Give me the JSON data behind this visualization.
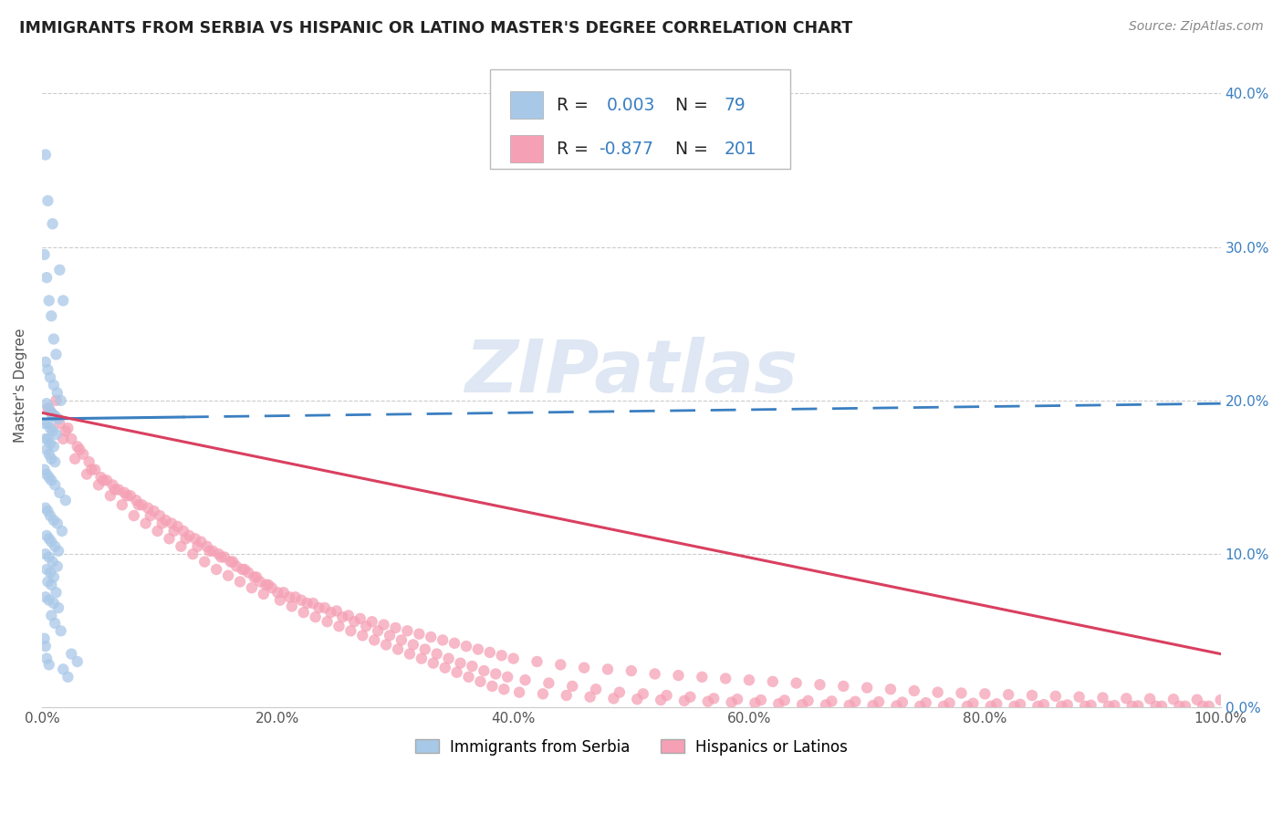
{
  "title": "IMMIGRANTS FROM SERBIA VS HISPANIC OR LATINO MASTER'S DEGREE CORRELATION CHART",
  "source": "Source: ZipAtlas.com",
  "ylabel": "Master's Degree",
  "watermark_text": "ZIPatlas",
  "xlim": [
    0.0,
    100.0
  ],
  "ylim": [
    0.0,
    42.0
  ],
  "yticks": [
    0.0,
    10.0,
    20.0,
    30.0,
    40.0
  ],
  "xticks": [
    0.0,
    20.0,
    40.0,
    60.0,
    80.0,
    100.0
  ],
  "blue_color": "#a8c8e8",
  "pink_color": "#f5a0b5",
  "blue_line_color": "#3a7fc1",
  "pink_line_color": "#d94060",
  "legend_label1": "Immigrants from Serbia",
  "legend_label2": "Hispanics or Latinos",
  "blue_line_x0": 0.0,
  "blue_line_y0": 18.8,
  "blue_line_x1": 100.0,
  "blue_line_y1": 19.8,
  "pink_line_x0": 0.0,
  "pink_line_y0": 19.2,
  "pink_line_x1": 100.0,
  "pink_line_y1": 3.5,
  "blue_scatter_x": [
    0.3,
    0.5,
    0.9,
    1.5,
    1.8,
    0.2,
    0.4,
    0.6,
    0.8,
    1.0,
    1.2,
    0.3,
    0.5,
    0.7,
    1.0,
    1.3,
    1.6,
    0.4,
    0.6,
    0.8,
    1.1,
    1.4,
    0.2,
    0.5,
    0.7,
    0.9,
    1.2,
    0.3,
    0.5,
    0.7,
    1.0,
    0.4,
    0.6,
    0.8,
    1.1,
    0.2,
    0.4,
    0.6,
    0.8,
    1.1,
    1.5,
    2.0,
    0.3,
    0.5,
    0.7,
    1.0,
    1.3,
    1.7,
    0.4,
    0.6,
    0.8,
    1.1,
    1.4,
    0.3,
    0.6,
    0.9,
    1.3,
    0.4,
    0.7,
    1.0,
    0.5,
    0.8,
    1.2,
    0.3,
    0.6,
    1.0,
    1.4,
    0.8,
    1.1,
    1.6,
    0.2,
    0.3,
    2.5,
    3.0,
    0.4,
    0.6,
    1.8,
    2.2,
    0.9
  ],
  "blue_scatter_y": [
    36.0,
    33.0,
    31.5,
    28.5,
    26.5,
    29.5,
    28.0,
    26.5,
    25.5,
    24.0,
    23.0,
    22.5,
    22.0,
    21.5,
    21.0,
    20.5,
    20.0,
    19.8,
    19.5,
    19.2,
    19.0,
    18.8,
    18.5,
    18.5,
    18.2,
    18.0,
    17.8,
    17.5,
    17.5,
    17.2,
    17.0,
    16.8,
    16.5,
    16.2,
    16.0,
    15.5,
    15.2,
    15.0,
    14.8,
    14.5,
    14.0,
    13.5,
    13.0,
    12.8,
    12.5,
    12.2,
    12.0,
    11.5,
    11.2,
    11.0,
    10.8,
    10.5,
    10.2,
    10.0,
    9.8,
    9.5,
    9.2,
    9.0,
    8.8,
    8.5,
    8.2,
    8.0,
    7.5,
    7.2,
    7.0,
    6.8,
    6.5,
    6.0,
    5.5,
    5.0,
    4.5,
    4.0,
    3.5,
    3.0,
    3.2,
    2.8,
    2.5,
    2.0,
    19.0
  ],
  "pink_scatter_x": [
    0.5,
    1.0,
    1.5,
    2.0,
    2.5,
    3.0,
    3.5,
    4.0,
    4.5,
    5.0,
    5.5,
    6.0,
    6.5,
    7.0,
    7.5,
    8.0,
    8.5,
    9.0,
    9.5,
    10.0,
    10.5,
    11.0,
    11.5,
    12.0,
    12.5,
    13.0,
    13.5,
    14.0,
    14.5,
    15.0,
    15.5,
    16.0,
    16.5,
    17.0,
    17.5,
    18.0,
    18.5,
    19.0,
    19.5,
    20.0,
    21.0,
    22.0,
    23.0,
    24.0,
    25.0,
    26.0,
    27.0,
    28.0,
    29.0,
    30.0,
    31.0,
    32.0,
    33.0,
    34.0,
    35.0,
    36.0,
    37.0,
    38.0,
    39.0,
    40.0,
    42.0,
    44.0,
    46.0,
    48.0,
    50.0,
    52.0,
    54.0,
    56.0,
    58.0,
    60.0,
    62.0,
    64.0,
    66.0,
    68.0,
    70.0,
    72.0,
    74.0,
    76.0,
    78.0,
    80.0,
    82.0,
    84.0,
    86.0,
    88.0,
    90.0,
    92.0,
    94.0,
    96.0,
    98.0,
    100.0,
    1.2,
    2.2,
    3.2,
    4.2,
    5.2,
    6.2,
    7.2,
    8.2,
    9.2,
    10.2,
    11.2,
    12.2,
    13.2,
    14.2,
    15.2,
    16.2,
    17.2,
    18.2,
    19.2,
    20.5,
    21.5,
    22.5,
    23.5,
    24.5,
    25.5,
    26.5,
    27.5,
    28.5,
    29.5,
    30.5,
    31.5,
    32.5,
    33.5,
    34.5,
    35.5,
    36.5,
    37.5,
    38.5,
    39.5,
    41.0,
    43.0,
    45.0,
    47.0,
    49.0,
    51.0,
    53.0,
    55.0,
    57.0,
    59.0,
    61.0,
    63.0,
    65.0,
    67.0,
    69.0,
    71.0,
    73.0,
    75.0,
    77.0,
    79.0,
    81.0,
    83.0,
    85.0,
    87.0,
    89.0,
    91.0,
    93.0,
    95.0,
    97.0,
    99.0,
    0.8,
    1.8,
    2.8,
    3.8,
    4.8,
    5.8,
    6.8,
    7.8,
    8.8,
    9.8,
    10.8,
    11.8,
    12.8,
    13.8,
    14.8,
    15.8,
    16.8,
    17.8,
    18.8,
    20.2,
    21.2,
    22.2,
    23.2,
    24.2,
    25.2,
    26.2,
    27.2,
    28.2,
    29.2,
    30.2,
    31.2,
    32.2,
    33.2,
    34.2,
    35.2,
    36.2,
    37.2,
    38.2,
    39.2,
    40.5,
    42.5,
    44.5,
    46.5,
    48.5,
    50.5,
    52.5,
    54.5,
    56.5,
    58.5,
    60.5,
    62.5,
    64.5,
    66.5,
    68.5,
    70.5,
    72.5,
    74.5,
    76.5,
    78.5,
    80.5,
    82.5,
    84.5,
    86.5,
    88.5,
    90.5,
    92.5,
    94.5,
    96.5,
    98.5
  ],
  "pink_scatter_y": [
    19.5,
    19.0,
    18.5,
    18.0,
    17.5,
    17.0,
    16.5,
    16.0,
    15.5,
    15.0,
    14.8,
    14.5,
    14.2,
    14.0,
    13.8,
    13.5,
    13.2,
    13.0,
    12.8,
    12.5,
    12.2,
    12.0,
    11.8,
    11.5,
    11.2,
    11.0,
    10.8,
    10.5,
    10.2,
    10.0,
    9.8,
    9.5,
    9.2,
    9.0,
    8.8,
    8.5,
    8.2,
    8.0,
    7.8,
    7.5,
    7.2,
    7.0,
    6.8,
    6.5,
    6.3,
    6.0,
    5.8,
    5.6,
    5.4,
    5.2,
    5.0,
    4.8,
    4.6,
    4.4,
    4.2,
    4.0,
    3.8,
    3.6,
    3.4,
    3.2,
    3.0,
    2.8,
    2.6,
    2.5,
    2.4,
    2.2,
    2.1,
    2.0,
    1.9,
    1.8,
    1.7,
    1.6,
    1.5,
    1.4,
    1.3,
    1.2,
    1.1,
    1.0,
    0.95,
    0.9,
    0.85,
    0.8,
    0.75,
    0.7,
    0.65,
    0.6,
    0.58,
    0.55,
    0.52,
    0.5,
    20.0,
    18.2,
    16.8,
    15.5,
    14.8,
    14.2,
    13.8,
    13.2,
    12.5,
    12.0,
    11.5,
    11.0,
    10.5,
    10.2,
    9.8,
    9.5,
    9.0,
    8.5,
    8.0,
    7.5,
    7.2,
    6.8,
    6.5,
    6.2,
    5.9,
    5.6,
    5.3,
    5.0,
    4.7,
    4.4,
    4.1,
    3.8,
    3.5,
    3.2,
    2.9,
    2.7,
    2.4,
    2.2,
    2.0,
    1.8,
    1.6,
    1.4,
    1.2,
    1.0,
    0.9,
    0.8,
    0.7,
    0.6,
    0.55,
    0.5,
    0.48,
    0.45,
    0.42,
    0.4,
    0.38,
    0.35,
    0.32,
    0.3,
    0.28,
    0.25,
    0.22,
    0.2,
    0.18,
    0.16,
    0.14,
    0.12,
    0.1,
    0.1,
    0.1,
    19.2,
    17.5,
    16.2,
    15.2,
    14.5,
    13.8,
    13.2,
    12.5,
    12.0,
    11.5,
    11.0,
    10.5,
    10.0,
    9.5,
    9.0,
    8.6,
    8.2,
    7.8,
    7.4,
    7.0,
    6.6,
    6.2,
    5.9,
    5.6,
    5.3,
    5.0,
    4.7,
    4.4,
    4.1,
    3.8,
    3.5,
    3.2,
    2.9,
    2.6,
    2.3,
    2.0,
    1.7,
    1.4,
    1.2,
    1.0,
    0.9,
    0.8,
    0.7,
    0.6,
    0.55,
    0.5,
    0.45,
    0.4,
    0.35,
    0.3,
    0.25,
    0.2,
    0.18,
    0.16,
    0.14,
    0.12,
    0.1,
    0.1,
    0.1,
    0.1,
    0.1,
    0.1,
    0.1,
    0.1,
    0.1,
    0.1,
    0.1,
    0.1,
    0.1
  ]
}
